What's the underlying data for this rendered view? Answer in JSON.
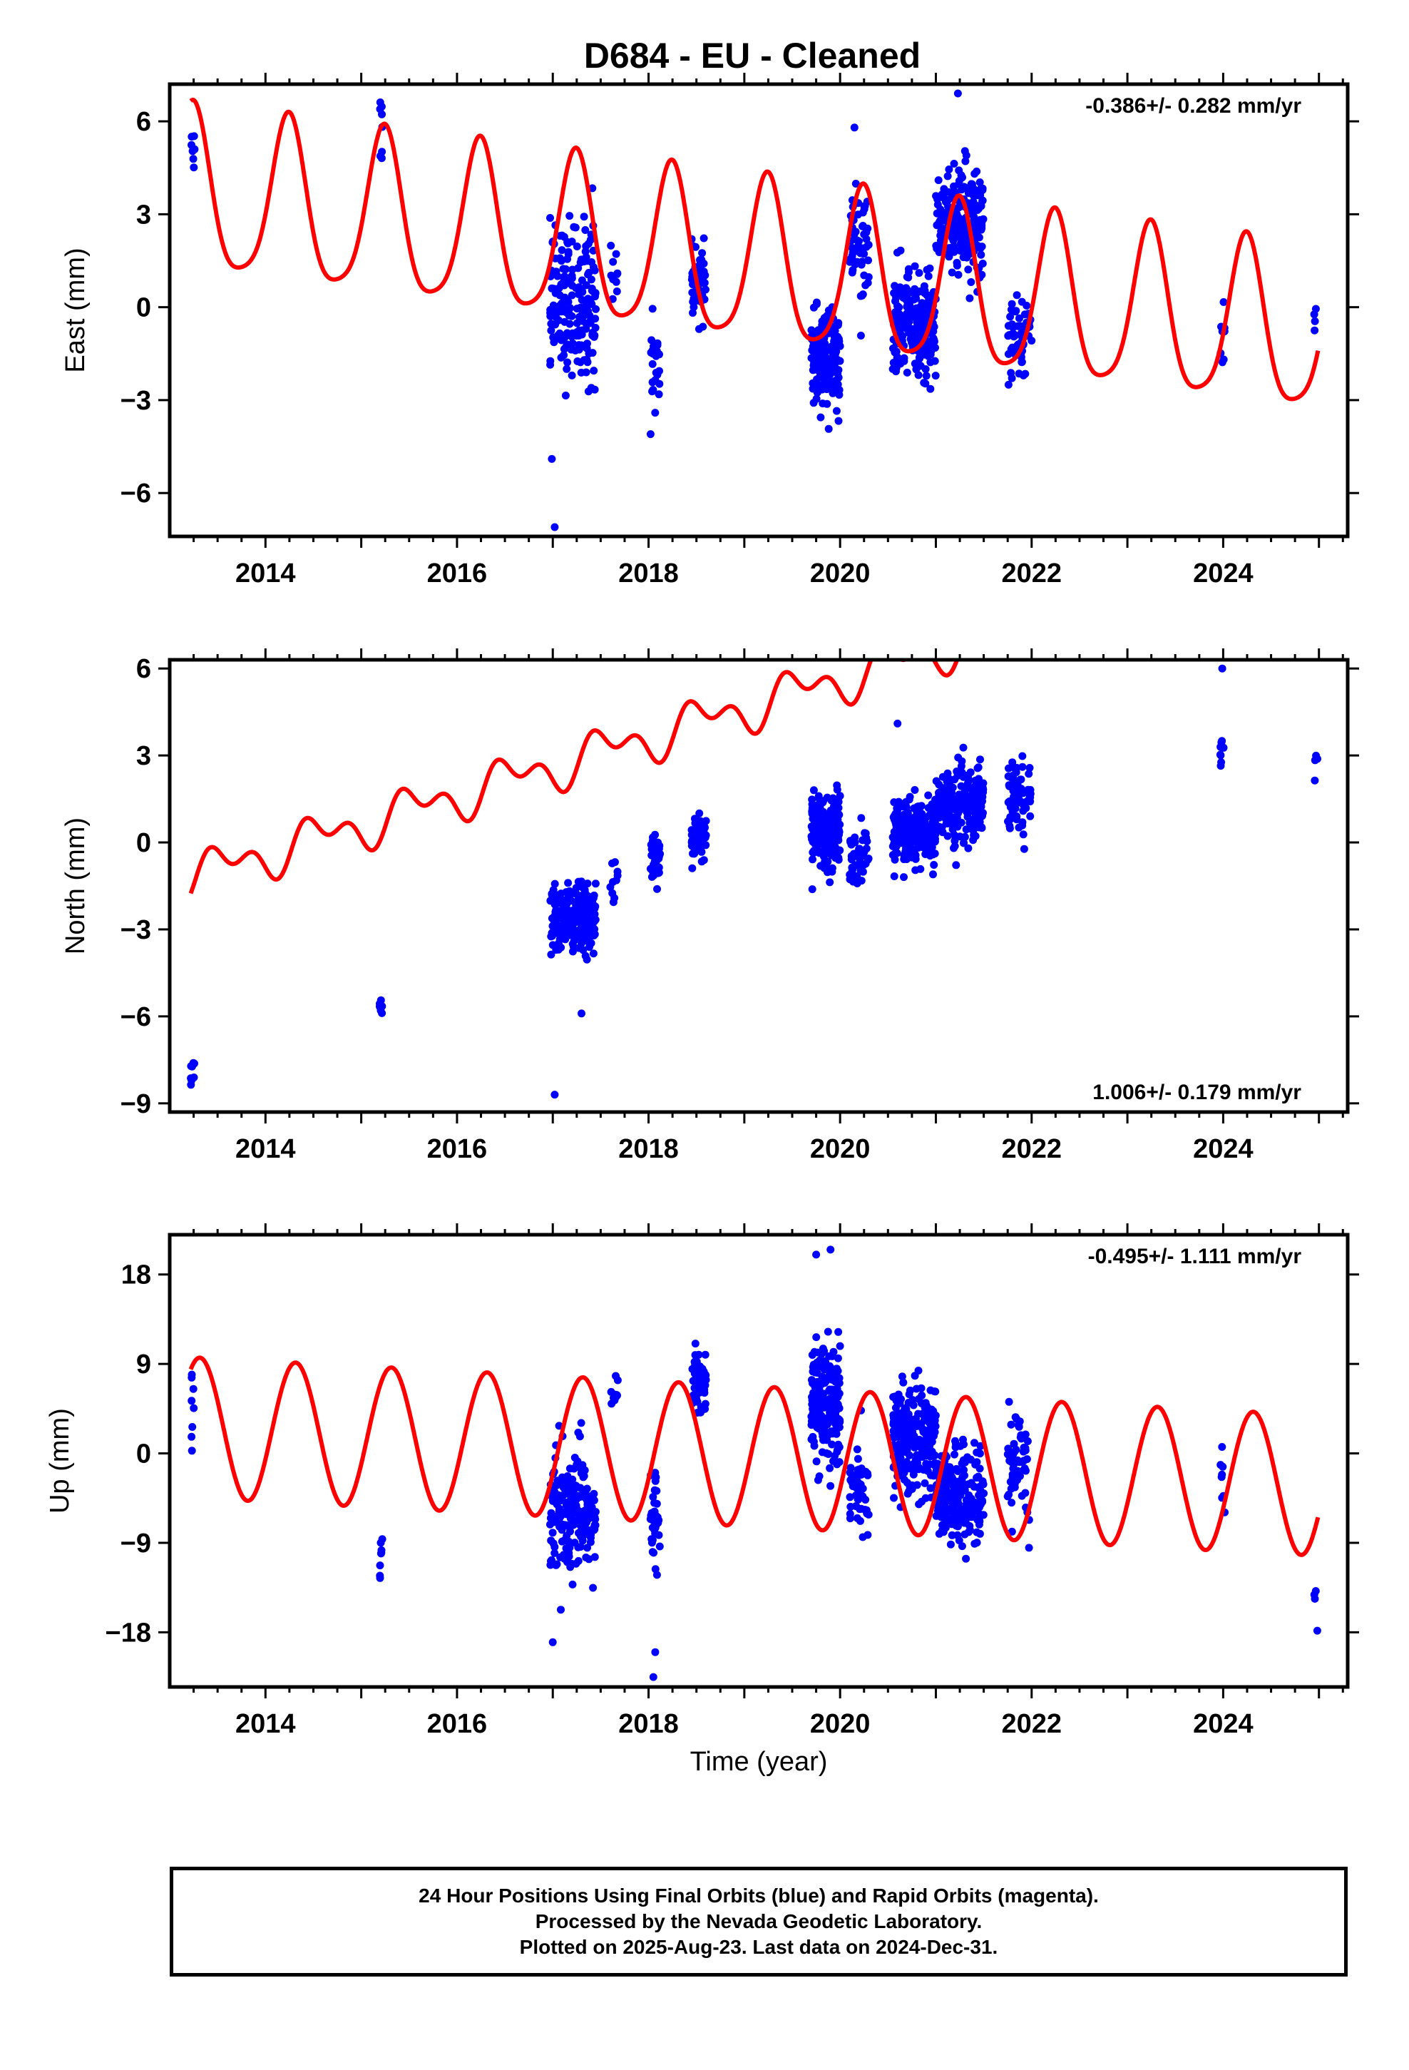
{
  "title": "D684  - EU - Cleaned",
  "xlabel": "Time (year)",
  "x_tick_labels": [
    "2014",
    "2016",
    "2018",
    "2020",
    "2022",
    "2024"
  ],
  "colors": {
    "data": "#0000ff",
    "model": "#ff0000"
  },
  "chart_data": [
    {
      "type": "scatter",
      "name": "east",
      "ylabel": "East (mm)",
      "rate": "-0.386+/- 0.282 mm/yr",
      "rate_position": "top-right",
      "xlim": [
        2013.0,
        2025.3
      ],
      "ylim": [
        -7.4,
        7.2
      ],
      "yticks": [
        6,
        3,
        0,
        -3,
        -6
      ],
      "model": {
        "offset": 3.6,
        "trend": -0.386,
        "annual_cos": 0.2,
        "annual_sin": 2.6,
        "semi_cos": -0.5,
        "semi_sin": 0.0
      },
      "observation_clusters": [
        {
          "t0": 2013.22,
          "t1": 2013.26,
          "n": 8,
          "mean": 5.3,
          "spread": 0.9
        },
        {
          "t0": 2015.19,
          "t1": 2015.22,
          "n": 8,
          "mean": 5.8,
          "spread": 1.2
        },
        {
          "t0": 2016.97,
          "t1": 2017.45,
          "n": 200,
          "mean": 0.2,
          "spread": 2.3
        },
        {
          "t0": 2017.6,
          "t1": 2017.68,
          "n": 10,
          "mean": 1.0,
          "spread": 1.2
        },
        {
          "t0": 2018.02,
          "t1": 2018.12,
          "n": 25,
          "mean": -1.8,
          "spread": 1.2
        },
        {
          "t0": 2018.45,
          "t1": 2018.6,
          "n": 60,
          "mean": 0.7,
          "spread": 1.0
        },
        {
          "t0": 2019.7,
          "t1": 2020.0,
          "n": 180,
          "mean": -1.7,
          "spread": 1.4
        },
        {
          "t0": 2020.1,
          "t1": 2020.3,
          "n": 60,
          "mean": 1.9,
          "spread": 1.8
        },
        {
          "t0": 2020.55,
          "t1": 2021.0,
          "n": 250,
          "mean": -0.6,
          "spread": 1.4
        },
        {
          "t0": 2021.0,
          "t1": 2021.5,
          "n": 220,
          "mean": 2.8,
          "spread": 1.6
        },
        {
          "t0": 2021.75,
          "t1": 2022.0,
          "n": 60,
          "mean": -1.2,
          "spread": 1.3
        },
        {
          "t0": 2023.97,
          "t1": 2024.02,
          "n": 8,
          "mean": -0.8,
          "spread": 1.1
        },
        {
          "t0": 2024.95,
          "t1": 2024.99,
          "n": 4,
          "mean": -0.6,
          "spread": 0.8
        }
      ],
      "outliers": [
        [
          2017.02,
          -7.1
        ],
        [
          2016.99,
          -4.9
        ],
        [
          2020.15,
          5.8
        ],
        [
          2021.23,
          6.9
        ]
      ]
    },
    {
      "type": "scatter",
      "name": "north",
      "ylabel": "North (mm)",
      "rate": "1.006+/- 0.179 mm/yr",
      "rate_position": "bottom-right",
      "xlim": [
        2013.0,
        2025.3
      ],
      "ylim": [
        -9.3,
        6.3
      ],
      "yticks": [
        6,
        3,
        0,
        -3,
        -6,
        -9
      ],
      "model": {
        "offset": -1.2,
        "trend": 1.006,
        "annual_cos": -0.55,
        "annual_sin": -0.2,
        "semi_cos": 0.1,
        "semi_sin": -0.45
      },
      "observation_clusters": [
        {
          "t0": 2013.22,
          "t1": 2013.26,
          "n": 8,
          "mean": -8.0,
          "spread": 0.6
        },
        {
          "t0": 2015.19,
          "t1": 2015.22,
          "n": 8,
          "mean": -5.5,
          "spread": 0.6
        },
        {
          "t0": 2016.97,
          "t1": 2017.45,
          "n": 220,
          "mean": -2.6,
          "spread": 1.0
        },
        {
          "t0": 2017.6,
          "t1": 2017.68,
          "n": 10,
          "mean": -1.5,
          "spread": 1.0
        },
        {
          "t0": 2018.02,
          "t1": 2018.12,
          "n": 40,
          "mean": -0.6,
          "spread": 0.7
        },
        {
          "t0": 2018.45,
          "t1": 2018.6,
          "n": 60,
          "mean": 0.2,
          "spread": 0.7
        },
        {
          "t0": 2019.7,
          "t1": 2020.0,
          "n": 200,
          "mean": 0.4,
          "spread": 1.1
        },
        {
          "t0": 2020.1,
          "t1": 2020.3,
          "n": 50,
          "mean": -0.5,
          "spread": 0.9
        },
        {
          "t0": 2020.55,
          "t1": 2021.0,
          "n": 250,
          "mean": 0.3,
          "spread": 1.1
        },
        {
          "t0": 2021.0,
          "t1": 2021.5,
          "n": 230,
          "mean": 1.2,
          "spread": 1.2
        },
        {
          "t0": 2021.75,
          "t1": 2022.0,
          "n": 70,
          "mean": 1.6,
          "spread": 1.0
        },
        {
          "t0": 2023.97,
          "t1": 2024.02,
          "n": 8,
          "mean": 3.3,
          "spread": 1.2
        },
        {
          "t0": 2024.95,
          "t1": 2024.99,
          "n": 4,
          "mean": 3.0,
          "spread": 0.6
        }
      ],
      "outliers": [
        [
          2017.02,
          -8.7
        ],
        [
          2017.3,
          -5.9
        ],
        [
          2020.6,
          4.1
        ],
        [
          2023.99,
          6.0
        ]
      ]
    },
    {
      "type": "scatter",
      "name": "up",
      "ylabel": "Up (mm)",
      "rate": "-0.495+/- 1.111 mm/yr",
      "rate_position": "top-right",
      "xlim": [
        2013.0,
        2025.3
      ],
      "ylim": [
        -23.5,
        22.0
      ],
      "yticks": [
        18,
        9,
        0,
        -9,
        -18
      ],
      "model": {
        "offset": 2.6,
        "trend": -0.495,
        "annual_cos": -2.8,
        "annual_sin": 6.5,
        "semi_cos": 0.0,
        "semi_sin": 0.0
      },
      "observation_clusters": [
        {
          "t0": 2013.22,
          "t1": 2013.26,
          "n": 8,
          "mean": 5.5,
          "spread": 4.0
        },
        {
          "t0": 2015.19,
          "t1": 2015.22,
          "n": 8,
          "mean": -10.5,
          "spread": 2.5
        },
        {
          "t0": 2016.97,
          "t1": 2017.45,
          "n": 220,
          "mean": -5.5,
          "spread": 5.5
        },
        {
          "t0": 2017.6,
          "t1": 2017.68,
          "n": 10,
          "mean": 5.5,
          "spread": 3.0
        },
        {
          "t0": 2018.02,
          "t1": 2018.12,
          "n": 40,
          "mean": -6.5,
          "spread": 4.5
        },
        {
          "t0": 2018.45,
          "t1": 2018.6,
          "n": 60,
          "mean": 7.0,
          "spread": 3.5
        },
        {
          "t0": 2019.7,
          "t1": 2020.0,
          "n": 200,
          "mean": 5.0,
          "spread": 5.0
        },
        {
          "t0": 2020.1,
          "t1": 2020.3,
          "n": 50,
          "mean": -4.5,
          "spread": 4.5
        },
        {
          "t0": 2020.55,
          "t1": 2021.0,
          "n": 250,
          "mean": 1.5,
          "spread": 5.0
        },
        {
          "t0": 2021.0,
          "t1": 2021.5,
          "n": 230,
          "mean": -4.5,
          "spread": 4.5
        },
        {
          "t0": 2021.75,
          "t1": 2022.0,
          "n": 60,
          "mean": -1.0,
          "spread": 5.0
        },
        {
          "t0": 2023.97,
          "t1": 2024.02,
          "n": 8,
          "mean": -4.0,
          "spread": 4.0
        },
        {
          "t0": 2024.95,
          "t1": 2024.99,
          "n": 4,
          "mean": -14.5,
          "spread": 2.0
        }
      ],
      "outliers": [
        [
          2018.05,
          -22.5
        ],
        [
          2018.07,
          -20.0
        ],
        [
          2019.9,
          20.5
        ],
        [
          2019.75,
          20.0
        ],
        [
          2017.0,
          -19.0
        ]
      ]
    }
  ],
  "footer": {
    "line1": "24 Hour Positions Using Final Orbits (blue) and Rapid Orbits (magenta).",
    "line2": "Processed by the Nevada Geodetic Laboratory.",
    "line3": "Plotted on 2025-Aug-23. Last data on 2024-Dec-31."
  }
}
